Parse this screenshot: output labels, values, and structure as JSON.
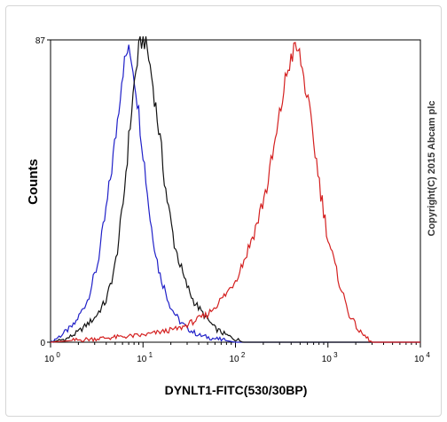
{
  "chart_data": {
    "type": "line",
    "xlabel": "DYNLT1-FITC(530/30BP)",
    "ylabel": "Counts",
    "x_scale": "log",
    "xlim": [
      1,
      10000
    ],
    "ylim": [
      0,
      87
    ],
    "x_ticks": [
      {
        "base": "10",
        "exp": "0"
      },
      {
        "base": "10",
        "exp": "1"
      },
      {
        "base": "10",
        "exp": "2"
      },
      {
        "base": "10",
        "exp": "3"
      },
      {
        "base": "10",
        "exp": "4"
      }
    ],
    "y_ticks": [
      "0",
      "87"
    ],
    "annotation": "Copyright(C) 2015 Abcam plc",
    "grid": false,
    "series": [
      {
        "color": "#2020c8",
        "x": [
          1.0,
          1.3,
          1.8,
          2.5,
          3.2,
          4.0,
          5.0,
          6.0,
          6.8,
          7.5,
          8.5,
          10,
          12,
          15,
          20,
          25,
          30,
          40,
          60,
          100
        ],
        "y": [
          0,
          2,
          5,
          12,
          22,
          38,
          58,
          78,
          84,
          82,
          72,
          55,
          35,
          20,
          10,
          6,
          4,
          2,
          1,
          0
        ]
      },
      {
        "color": "#111111",
        "x": [
          1.0,
          1.5,
          2.0,
          3.0,
          4.0,
          5.0,
          6.0,
          7.0,
          8.0,
          9.0,
          10,
          11,
          12.5,
          15,
          18,
          22,
          28,
          35,
          45,
          60,
          80,
          120
        ],
        "y": [
          0,
          1,
          3,
          7,
          12,
          22,
          38,
          58,
          74,
          84,
          88,
          85,
          76,
          60,
          42,
          28,
          18,
          12,
          8,
          4,
          2,
          0
        ]
      },
      {
        "color": "#d42020",
        "x": [
          1.0,
          3.0,
          10,
          25,
          50,
          80,
          100,
          130,
          170,
          220,
          280,
          350,
          400,
          450,
          500,
          600,
          700,
          850,
          1000,
          1300,
          1700,
          2200,
          3000
        ],
        "y": [
          0,
          1,
          2,
          4,
          8,
          14,
          18,
          25,
          34,
          45,
          60,
          76,
          82,
          85,
          82,
          70,
          58,
          42,
          30,
          18,
          8,
          3,
          0
        ]
      }
    ]
  }
}
